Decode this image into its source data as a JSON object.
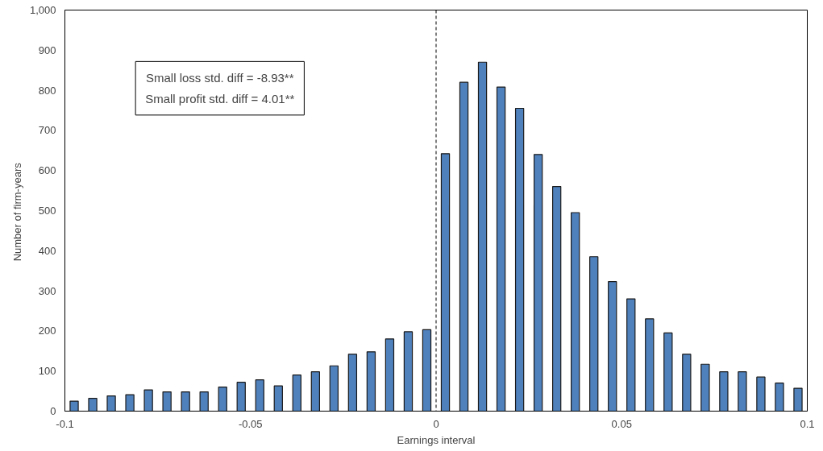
{
  "chart_data": {
    "type": "histogram",
    "xlabel": "Earnings interval",
    "ylabel": "Number  of firm-years",
    "bins": [
      -0.1,
      -0.095,
      -0.09,
      -0.085,
      -0.08,
      -0.075,
      -0.07,
      -0.065,
      -0.06,
      -0.055,
      -0.05,
      -0.045,
      -0.04,
      -0.035,
      -0.03,
      -0.025,
      -0.02,
      -0.015,
      -0.01,
      -0.005,
      0,
      0.005,
      0.01,
      0.015,
      0.02,
      0.025,
      0.03,
      0.035,
      0.04,
      0.045,
      0.05,
      0.055,
      0.06,
      0.065,
      0.07,
      0.075,
      0.08,
      0.085,
      0.09,
      0.095,
      0.1
    ],
    "values": [
      25,
      32,
      38,
      41,
      53,
      48,
      48,
      48,
      60,
      72,
      78,
      63,
      90,
      98,
      113,
      142,
      148,
      180,
      198,
      203,
      642,
      820,
      870,
      808,
      755,
      640,
      560,
      495,
      385,
      323,
      280,
      230,
      195,
      142,
      117,
      98,
      98,
      85,
      70,
      57
    ],
    "color": "#4f81bd",
    "xlim": [
      -0.1,
      0.1
    ],
    "xticks": [
      -0.1,
      -0.05,
      0,
      0.05,
      0.1
    ],
    "ylim": [
      0,
      1000
    ],
    "yticks": [
      0,
      100,
      200,
      300,
      400,
      500,
      600,
      700,
      800,
      900,
      {
        "value": 1000,
        "label": "1,000"
      }
    ],
    "grid": false,
    "ref_lines": [
      {
        "axis": "x",
        "value": 0,
        "label": null,
        "color": "#000000",
        "line_style": "dashed"
      }
    ],
    "annotations": [
      "Small loss std. diff = -8.93**",
      "Small profit std. diff = 4.01**"
    ]
  }
}
